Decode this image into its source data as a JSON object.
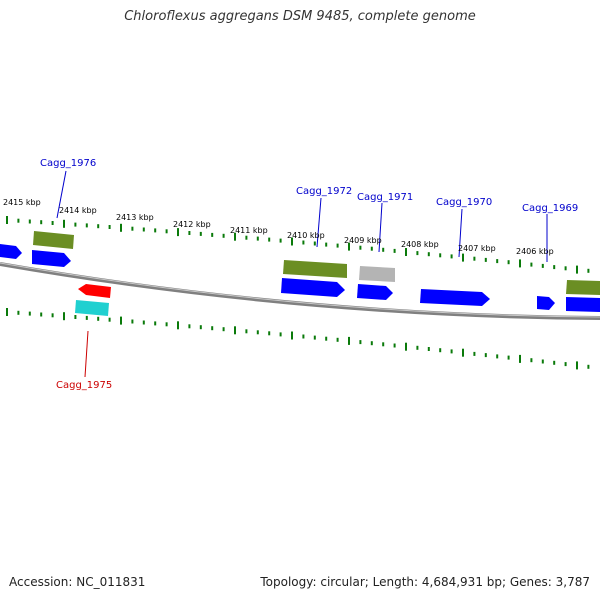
{
  "title": "Chloroflexus aggregans DSM 9485, complete genome",
  "footer": {
    "accession": "Accession: NC_011831",
    "summary": "Topology: circular; Length: 4,684,931 bp; Genes: 3,787"
  },
  "colors": {
    "background": "#ffffff",
    "backbone": "#808080",
    "tick": "#0a7a0a",
    "cds": "#0000ff",
    "gene_olive": "#6b8e23",
    "gene_gray": "#b4b4b4",
    "rna_red": "#ff0000",
    "rna_cyan": "#20d0d0",
    "label_blue": "#0000cc",
    "label_red": "#cc0000"
  },
  "scale_labels": [
    "2415 kbp",
    "2414 kbp",
    "2413 kbp",
    "2412 kbp",
    "2411 kbp",
    "2410 kbp",
    "2409 kbp",
    "2408 kbp",
    "2407 kbp",
    "2406 kbp"
  ],
  "gene_labels": [
    {
      "id": "cagg1976",
      "text": "Cagg_1976",
      "strand": "forward"
    },
    {
      "id": "cagg1975",
      "text": "Cagg_1975",
      "strand": "reverse"
    },
    {
      "id": "cagg1972",
      "text": "Cagg_1972",
      "strand": "forward"
    },
    {
      "id": "cagg1971",
      "text": "Cagg_1971",
      "strand": "forward"
    },
    {
      "id": "cagg1970",
      "text": "Cagg_1970",
      "strand": "forward"
    },
    {
      "id": "cagg1969",
      "text": "Cagg_1969",
      "strand": "forward"
    }
  ]
}
